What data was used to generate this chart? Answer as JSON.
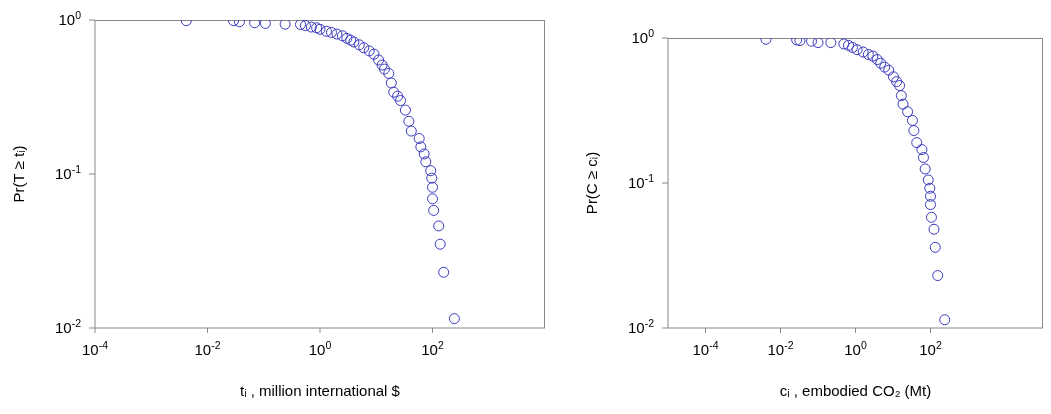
{
  "chart_data": [
    {
      "type": "scatter",
      "xlabel": "tᵢ , million international $",
      "ylabel": "Pr(T ≥ tᵢ)",
      "log": "xy",
      "marker": "circle",
      "grid": false,
      "xlim": [
        0.0001,
        10000
      ],
      "ylim": [
        0.01,
        1
      ],
      "xticks": [
        {
          "value": 0.0001,
          "label": "10$^{-4}$"
        },
        {
          "value": 0.01,
          "label": "10$^{-2}$"
        },
        {
          "value": 1,
          "label": "10$^{0}$"
        },
        {
          "value": 100,
          "label": "10$^{2}$"
        }
      ],
      "yticks": [
        {
          "value": 0.01,
          "label": "10$^{-2}$"
        },
        {
          "value": 0.1,
          "label": "10$^{-1}$"
        },
        {
          "value": 1,
          "label": "10$^{0}$"
        }
      ],
      "series": [
        {
          "color": "#3b3bbf",
          "x": [
            0.0042,
            0.029,
            0.037,
            0.069,
            0.107,
            0.24,
            0.45,
            0.55,
            0.7,
            0.87,
            1.0,
            1.3,
            1.6,
            2.0,
            2.5,
            3.0,
            3.5,
            4.0,
            5.0,
            6.0,
            7.5,
            9.1,
            11,
            12.7,
            14,
            16.7,
            18.5,
            20.5,
            24,
            27,
            33,
            38,
            42,
            58,
            62,
            71,
            76,
            93,
            97,
            100,
            100,
            105,
            129,
            137,
            158,
            245
          ],
          "values": [
            0.99,
            0.99,
            0.975,
            0.96,
            0.95,
            0.94,
            0.935,
            0.92,
            0.9,
            0.89,
            0.87,
            0.845,
            0.83,
            0.81,
            0.79,
            0.76,
            0.74,
            0.72,
            0.69,
            0.66,
            0.63,
            0.6,
            0.55,
            0.51,
            0.48,
            0.45,
            0.39,
            0.34,
            0.32,
            0.3,
            0.26,
            0.22,
            0.19,
            0.17,
            0.15,
            0.135,
            0.12,
            0.105,
            0.094,
            0.082,
            0.069,
            0.058,
            0.046,
            0.035,
            0.023,
            0.0115
          ]
        }
      ]
    },
    {
      "type": "scatter",
      "xlabel": "cᵢ , embodied CO₂ (Mt)",
      "ylabel": "Pr(C ≥ cᵢ)",
      "log": "xy",
      "marker": "circle",
      "grid": false,
      "xlim": [
        1e-05,
        100000
      ],
      "ylim": [
        0.01,
        1
      ],
      "xticks": [
        {
          "value": 0.0001,
          "label": "10$^{-4}$"
        },
        {
          "value": 0.01,
          "label": "10$^{-2}$"
        },
        {
          "value": 1,
          "label": "10$^{0}$"
        },
        {
          "value": 100,
          "label": "10$^{2}$"
        }
      ],
      "yticks": [
        {
          "value": 0.01,
          "label": "10$^{-2}$"
        },
        {
          "value": 0.1,
          "label": "10$^{-1}$"
        },
        {
          "value": 1,
          "label": "10$^{0}$"
        }
      ],
      "series": [
        {
          "color": "#3b3bbf",
          "x": [
            0.0041,
            0.027,
            0.033,
            0.067,
            0.1,
            0.22,
            0.49,
            0.65,
            0.83,
            1.1,
            1.6,
            2.2,
            2.9,
            3.8,
            4.7,
            6.0,
            7.7,
            10.3,
            12.5,
            15,
            16.7,
            18.5,
            24.5,
            33,
            36,
            43,
            59,
            65,
            72,
            87,
            96,
            100,
            100,
            106,
            124,
            134,
            156,
            240
          ],
          "values": [
            0.98,
            0.97,
            0.96,
            0.95,
            0.93,
            0.93,
            0.91,
            0.89,
            0.86,
            0.83,
            0.8,
            0.77,
            0.75,
            0.71,
            0.67,
            0.63,
            0.6,
            0.54,
            0.5,
            0.47,
            0.4,
            0.35,
            0.31,
            0.27,
            0.23,
            0.19,
            0.17,
            0.15,
            0.125,
            0.105,
            0.092,
            0.081,
            0.071,
            0.058,
            0.048,
            0.036,
            0.023,
            0.0114
          ]
        }
      ]
    }
  ]
}
